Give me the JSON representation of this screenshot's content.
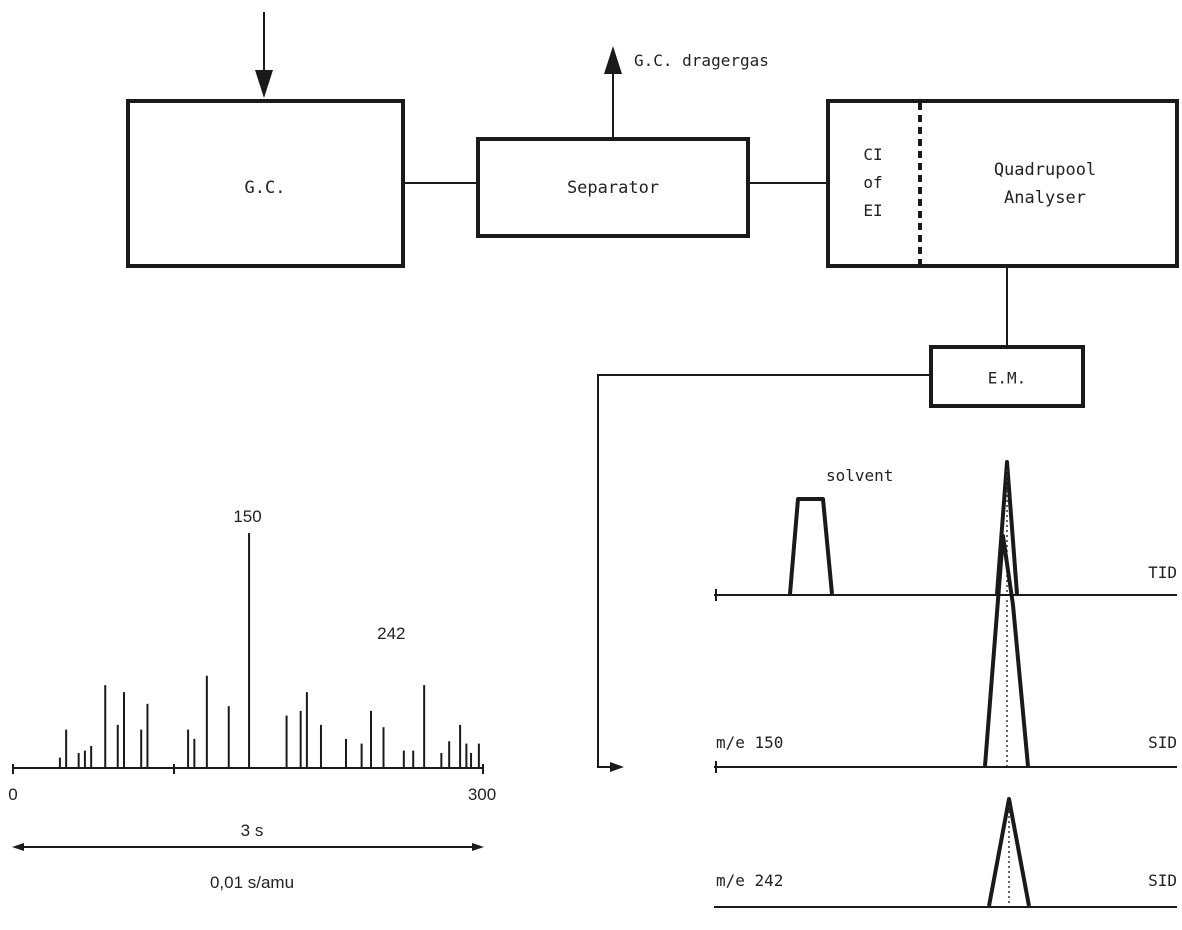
{
  "blocks": {
    "gc": "G.C.",
    "separator": "Separator",
    "carrier_gas": "G.C. dragergas",
    "ion_source": [
      "CI",
      "of",
      "EI"
    ],
    "analyser": [
      "Quadrupool",
      "Analyser"
    ],
    "em": "E.M."
  },
  "traces": {
    "solvent": "solvent",
    "tid": "TID",
    "m150": "m/e 150",
    "m242": "m/e 242",
    "sid1": "SID",
    "sid2": "SID"
  },
  "chart_data": {
    "type": "bar",
    "title": "",
    "xlim": [
      0,
      300
    ],
    "x_tick_labels": [
      "0",
      "300"
    ],
    "scan_time_label": "3 s",
    "rate_label": "0,01 s/amu",
    "peak_labels": [
      {
        "x": 150,
        "text": "150"
      },
      {
        "x": 242,
        "text": "242"
      }
    ],
    "ylim": [
      0,
      100
    ],
    "spectrum": {
      "x": [
        30,
        34,
        42,
        46,
        50,
        59,
        67,
        71,
        82,
        86,
        112,
        116,
        124,
        138,
        151,
        175,
        184,
        188,
        197,
        213,
        223,
        229,
        237,
        250,
        256,
        263,
        274,
        279,
        286,
        290,
        293,
        298
      ],
      "values": [
        4,
        16,
        6,
        7,
        9,
        35,
        18,
        32,
        16,
        27,
        16,
        12,
        39,
        26,
        100,
        22,
        24,
        32,
        18,
        12,
        10,
        24,
        17,
        7,
        7,
        35,
        6,
        11,
        18,
        10,
        6,
        10
      ]
    }
  }
}
